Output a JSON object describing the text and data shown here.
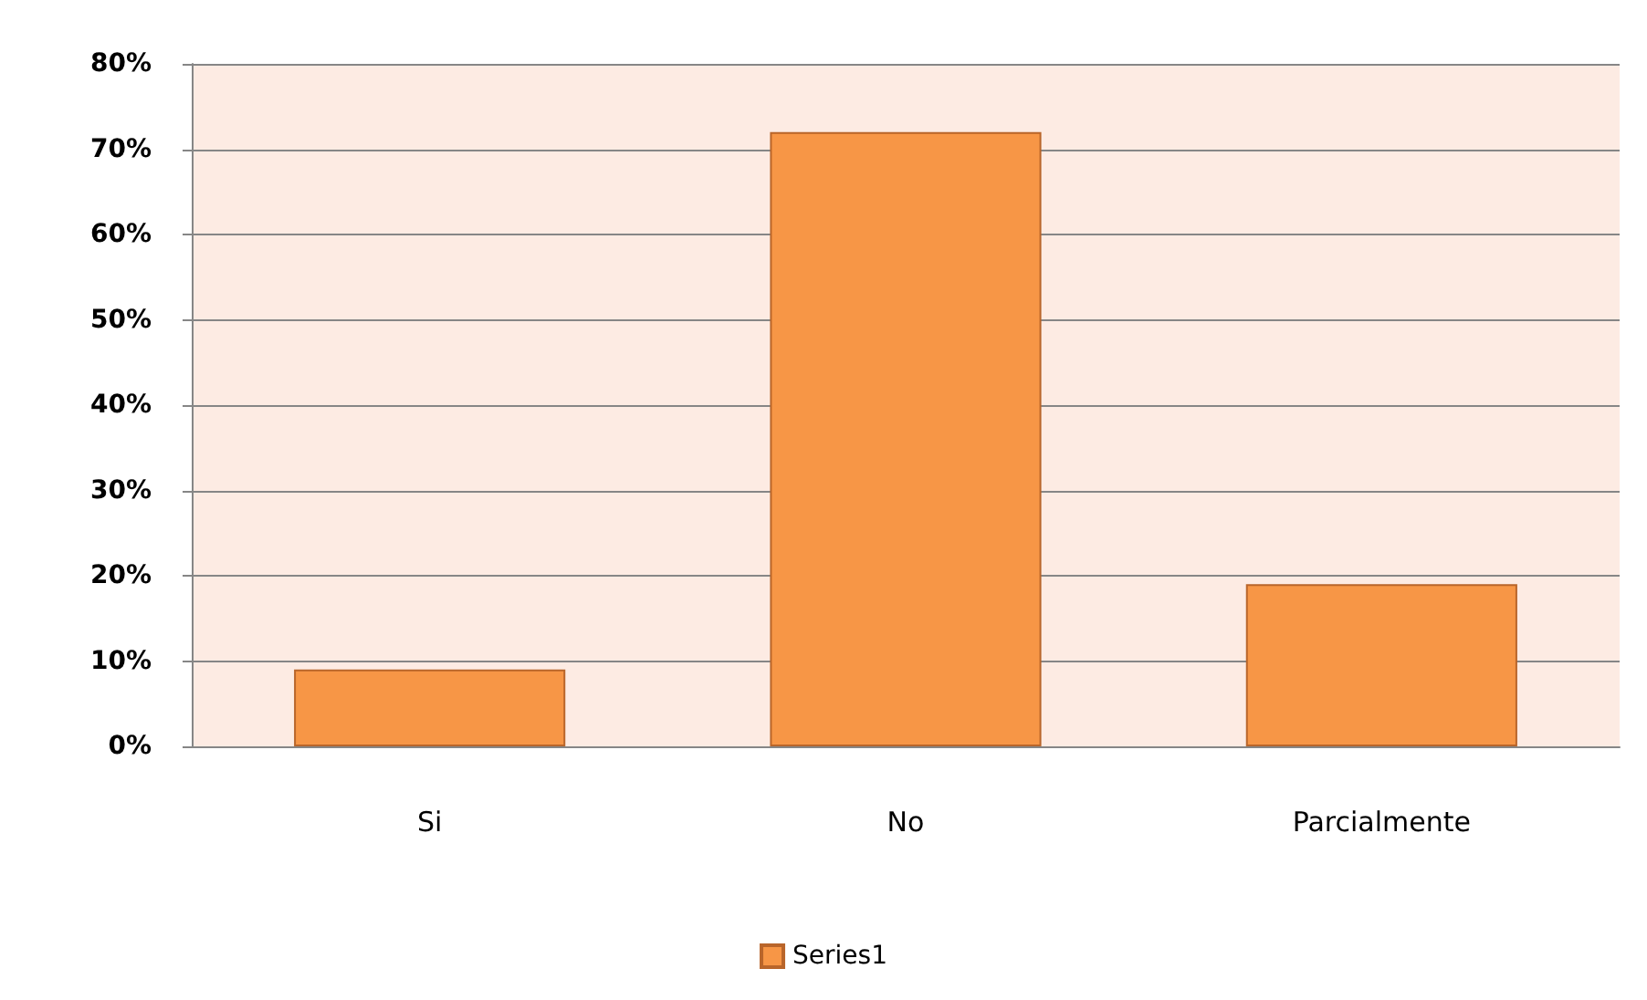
{
  "chart_data": {
    "type": "bar",
    "categories": [
      "Si",
      "No",
      "Parcialmente"
    ],
    "series": [
      {
        "name": "Series1",
        "color": "#f79646",
        "values": [
          9,
          72,
          19
        ]
      }
    ],
    "ylim": [
      0,
      80
    ],
    "yticks": [
      {
        "value": 0,
        "label": "0%"
      },
      {
        "value": 10,
        "label": "10%"
      },
      {
        "value": 20,
        "label": "20%"
      },
      {
        "value": 30,
        "label": "30%"
      },
      {
        "value": 40,
        "label": "40%"
      },
      {
        "value": 50,
        "label": "50%"
      },
      {
        "value": 60,
        "label": "60%"
      },
      {
        "value": 70,
        "label": "70%"
      },
      {
        "value": 80,
        "label": "80%"
      }
    ],
    "grid": "y",
    "legend": "bottom"
  }
}
